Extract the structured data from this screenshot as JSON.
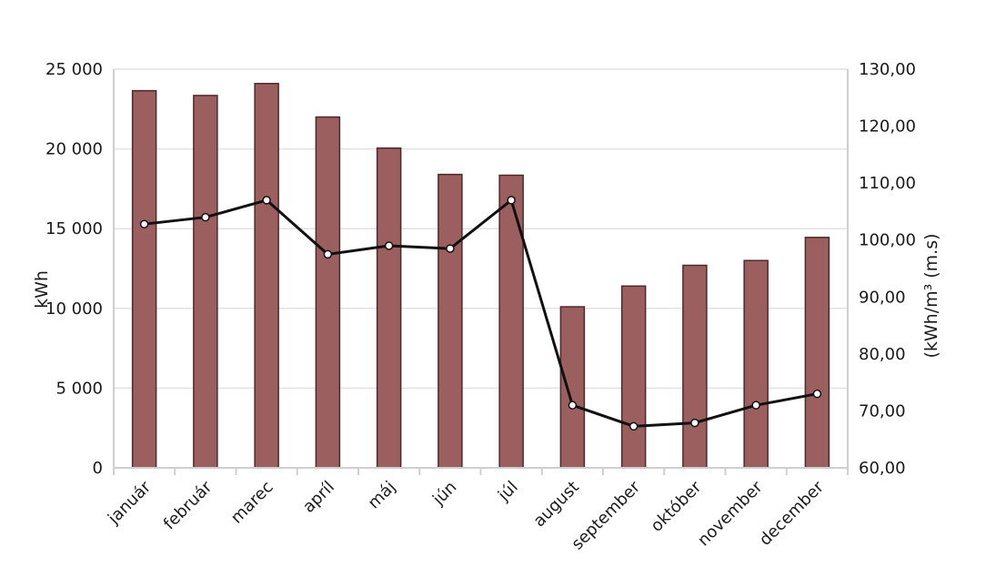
{
  "chart_data": {
    "type": "bar",
    "categories": [
      "január",
      "február",
      "marec",
      "apríl",
      "máj",
      "jún",
      "júl",
      "august",
      "september",
      "október",
      "november",
      "december"
    ],
    "series": [
      {
        "type": "bar",
        "axis": "left",
        "values": [
          23650,
          23350,
          24100,
          22000,
          20050,
          18400,
          18350,
          10100,
          11400,
          12700,
          13000,
          14450
        ]
      },
      {
        "type": "line",
        "axis": "right",
        "values": [
          102.8,
          104.0,
          107.0,
          97.5,
          99.0,
          98.5,
          107.0,
          71.0,
          67.3,
          67.9,
          71.0,
          73.0
        ]
      }
    ],
    "ylabel": "kWh",
    "ylabel_right": "(kWh/m³ (m.s)",
    "ylim": [
      0,
      25000
    ],
    "ylim_right": [
      60,
      130
    ],
    "y_ticks": [
      "0",
      "5 000",
      "10 000",
      "15 000",
      "20 000",
      "25 000"
    ],
    "y_ticks_right": [
      "60,00",
      "70,00",
      "80,00",
      "90,00",
      "100,00",
      "110,00",
      "120,00",
      "130,00"
    ],
    "grid": true,
    "colors": {
      "bar_fill": "#9b5f5f",
      "bar_edge": "#4d2a2a",
      "line": "#111111",
      "marker_fill": "#ffffff",
      "grid": "#e2e2e2",
      "axis": "#cfcfcf"
    }
  }
}
